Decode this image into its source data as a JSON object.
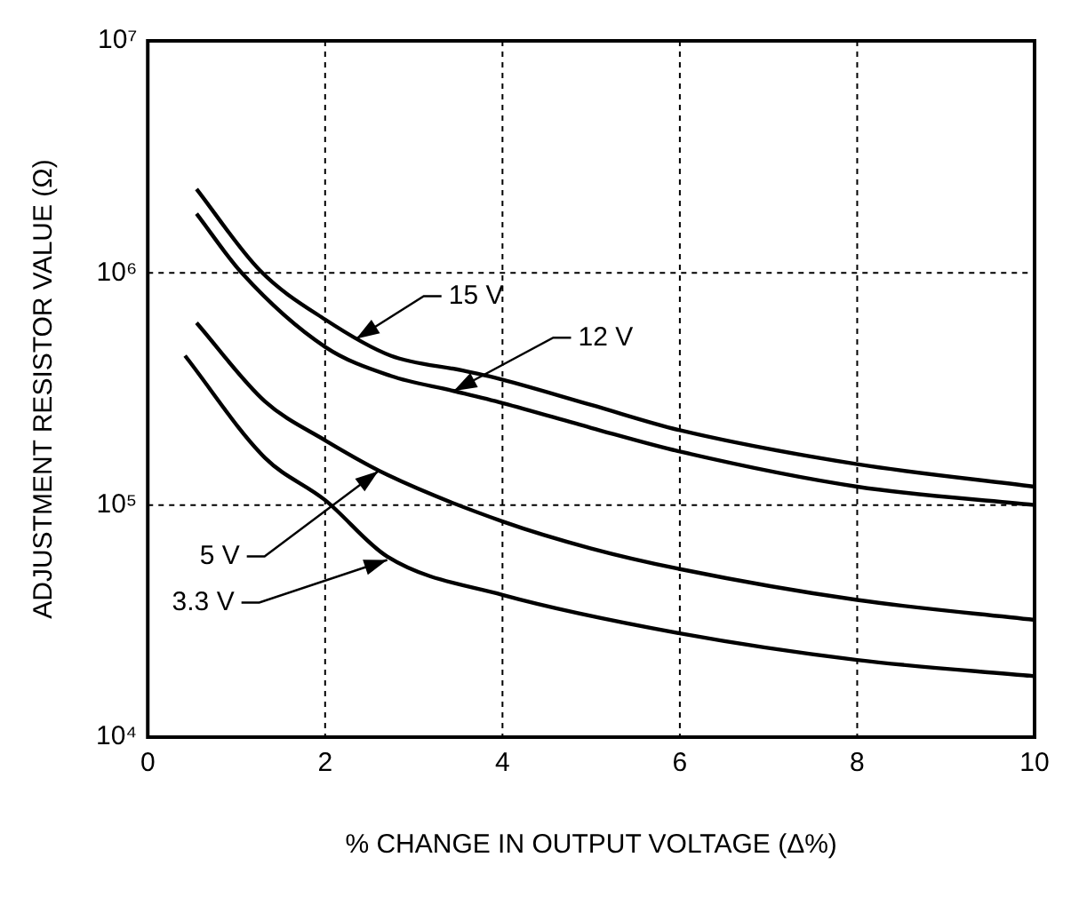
{
  "chart_data": {
    "type": "line",
    "xlabel": "% CHANGE IN OUTPUT VOLTAGE (Δ%)",
    "ylabel": "ADJUSTMENT RESISTOR VALUE (Ω)",
    "log": "y",
    "grid": true,
    "legend": false,
    "marker": "none",
    "line_style": "solid",
    "xlim": [
      0,
      10
    ],
    "xticks": [
      0,
      2,
      4,
      6,
      8,
      10
    ],
    "ylim": [
      10000,
      10000000
    ],
    "yticks": [
      {
        "value": 10000,
        "label": "10⁴"
      },
      {
        "value": 100000,
        "label": "10⁵"
      },
      {
        "value": 1000000,
        "label": "10⁶"
      },
      {
        "value": 10000000,
        "label": "10⁷"
      }
    ],
    "series": [
      {
        "color": "#000000",
        "x": [
          0.55,
          1.26,
          2,
          2.74,
          3.55,
          3.9,
          5,
          6,
          8,
          10
        ],
        "values": [
          2300000,
          1030000,
          630000,
          440000,
          380000,
          355000,
          270000,
          210000,
          150000,
          120000
        ]
      },
      {
        "color": "#000000",
        "x": [
          0.55,
          1.06,
          2,
          2.74,
          3.45,
          4,
          5,
          6,
          8,
          10
        ],
        "values": [
          1800000,
          1000000,
          480000,
          360000,
          310000,
          275000,
          215000,
          170000,
          120000,
          100000
        ]
      },
      {
        "color": "#000000",
        "x": [
          0.55,
          1.32,
          2,
          2.7,
          4,
          5,
          6,
          8,
          10
        ],
        "values": [
          610000,
          280000,
          190000,
          135000,
          85000,
          65000,
          53000,
          39000,
          32000
        ]
      },
      {
        "color": "#000000",
        "x": [
          0.42,
          1.32,
          2,
          2.7,
          4,
          6,
          8,
          10
        ],
        "values": [
          440000,
          160000,
          105000,
          60000,
          41000,
          28000,
          21500,
          18300
        ]
      }
    ],
    "annotations": [
      {
        "text": "15 V",
        "x": 2.35,
        "y": 520000
      },
      {
        "text": "12 V",
        "x": 3.45,
        "y": 310000
      },
      {
        "text": "5 V",
        "x": 2.6,
        "y": 140000
      },
      {
        "text": "3.3 V",
        "x": 2.7,
        "y": 58000
      }
    ]
  }
}
